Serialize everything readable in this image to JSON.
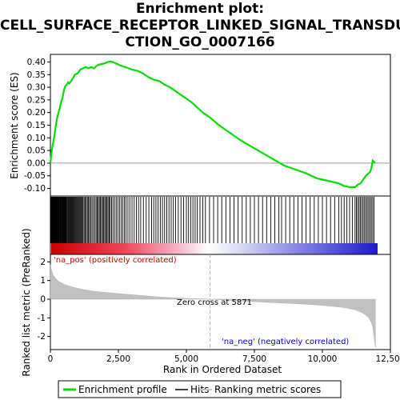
{
  "title_lines": [
    "Enrichment plot:",
    "CELL_SURFACE_RECEPTOR_LINKED_SIGNAL_TRANSDU",
    "CTION_GO_0007166"
  ],
  "chart_data": {
    "type": "line",
    "title": "Enrichment plot: CELL_SURFACE_RECEPTOR_LINKED_SIGNAL_TRANSDUCTION_GO_0007166",
    "xlabel": "Rank in Ordered Dataset",
    "xlim": [
      0,
      12500
    ],
    "x_ticks": [
      0,
      2500,
      5000,
      7500,
      10000,
      12500
    ],
    "x_tick_labels": [
      "0",
      "2,500",
      "5,000",
      "7,500",
      "10,000",
      "12,500"
    ],
    "es_panel": {
      "ylabel": "Enrichment score (ES)",
      "ylim": [
        -0.13,
        0.43
      ],
      "y_ticks": [
        -0.1,
        -0.05,
        0.0,
        0.05,
        0.1,
        0.15,
        0.2,
        0.25,
        0.3,
        0.35,
        0.4
      ],
      "y_tick_labels": [
        "-0.10",
        "-0.05",
        "0.00",
        "0.05",
        "0.10",
        "0.15",
        "0.20",
        "0.25",
        "0.30",
        "0.35",
        "0.40"
      ],
      "series_name": "Enrichment profile",
      "color": "#00dd00",
      "x": [
        0,
        50,
        100,
        150,
        200,
        250,
        300,
        350,
        400,
        450,
        500,
        550,
        600,
        650,
        700,
        800,
        900,
        1000,
        1100,
        1200,
        1300,
        1400,
        1500,
        1600,
        1700,
        1800,
        1900,
        2000,
        2100,
        2200,
        2300,
        2400,
        2600,
        2800,
        3000,
        3200,
        3400,
        3600,
        3800,
        4000,
        4200,
        4400,
        4600,
        4800,
        5000,
        5200,
        5400,
        5600,
        5871,
        6200,
        6600,
        7000,
        7400,
        7800,
        8200,
        8600,
        9000,
        9400,
        9800,
        10200,
        10600,
        10800,
        11000,
        11200,
        11300,
        11400,
        11500,
        11600,
        11700,
        11750,
        11800,
        11850,
        11950
      ],
      "y": [
        0.0,
        0.05,
        0.08,
        0.11,
        0.15,
        0.18,
        0.2,
        0.22,
        0.245,
        0.26,
        0.29,
        0.305,
        0.31,
        0.32,
        0.315,
        0.33,
        0.35,
        0.355,
        0.37,
        0.375,
        0.38,
        0.375,
        0.38,
        0.375,
        0.385,
        0.39,
        0.392,
        0.395,
        0.4,
        0.402,
        0.4,
        0.395,
        0.385,
        0.378,
        0.37,
        0.365,
        0.355,
        0.34,
        0.33,
        0.325,
        0.31,
        0.3,
        0.285,
        0.27,
        0.255,
        0.24,
        0.22,
        0.2,
        0.18,
        0.15,
        0.12,
        0.09,
        0.065,
        0.04,
        0.015,
        -0.01,
        -0.025,
        -0.04,
        -0.06,
        -0.07,
        -0.08,
        -0.09,
        -0.095,
        -0.095,
        -0.085,
        -0.08,
        -0.065,
        -0.05,
        -0.04,
        -0.035,
        -0.02,
        0.01,
        0.0
      ]
    },
    "hits_panel": {
      "series_name": "Hits",
      "hit_ranks": [
        5,
        20,
        35,
        50,
        65,
        80,
        95,
        110,
        125,
        140,
        155,
        170,
        185,
        200,
        215,
        230,
        245,
        260,
        280,
        300,
        320,
        340,
        360,
        380,
        400,
        420,
        440,
        460,
        480,
        500,
        520,
        540,
        560,
        580,
        600,
        630,
        660,
        690,
        720,
        750,
        780,
        810,
        840,
        870,
        900,
        930,
        960,
        990,
        1020,
        1050,
        1080,
        1110,
        1140,
        1170,
        1200,
        1240,
        1280,
        1320,
        1360,
        1400,
        1440,
        1480,
        1530,
        1580,
        1630,
        1680,
        1720,
        1760,
        1800,
        1840,
        1880,
        1920,
        1960,
        2000,
        2040,
        2080,
        2120,
        2160,
        2200,
        2250,
        2300,
        2360,
        2420,
        2480,
        2540,
        2600,
        2660,
        2720,
        2780,
        2850,
        2920,
        3000,
        3080,
        3160,
        3240,
        3320,
        3420,
        3520,
        3620,
        3720,
        3800,
        3880,
        3960,
        4040,
        4120,
        4200,
        4280,
        4360,
        4440,
        4520,
        4600,
        4700,
        4800,
        4900,
        5000,
        5080,
        5160,
        5240,
        5320,
        5400,
        5500,
        5600,
        5700,
        5850,
        6000,
        6150,
        6300,
        6450,
        6600,
        6750,
        6900,
        7050,
        7200,
        7350,
        7500,
        7650,
        7800,
        7950,
        8100,
        8250,
        8400,
        8500,
        8650,
        8800,
        8950,
        9100,
        9250,
        9400,
        9550,
        9700,
        9850,
        10000,
        10150,
        10300,
        10450,
        10600,
        10700,
        10800,
        10900,
        11000,
        11100,
        11200,
        11250,
        11300,
        11350,
        11400,
        11450,
        11500,
        11550,
        11600,
        11650,
        11700,
        11750,
        11800,
        11850,
        11900
      ]
    },
    "metric_panel": {
      "ylabel": "Ranked list metric (PreRanked)",
      "ylim": [
        -2.7,
        2.4
      ],
      "y_ticks": [
        -2,
        -1,
        0,
        1,
        2
      ],
      "y_tick_labels": [
        "-2",
        "-1",
        "0",
        "1",
        "2"
      ],
      "series_name": "Ranking metric scores",
      "color": "#c0c0c0",
      "x": [
        0,
        50,
        100,
        200,
        300,
        500,
        800,
        1200,
        1600,
        2000,
        2500,
        3000,
        3500,
        4000,
        4500,
        5000,
        5500,
        5871,
        6500,
        7000,
        7500,
        8000,
        8500,
        9000,
        9500,
        10000,
        10500,
        10800,
        11000,
        11200,
        11400,
        11600,
        11700,
        11800,
        11850,
        11900,
        11950
      ],
      "y": [
        1.85,
        1.5,
        1.3,
        1.1,
        0.95,
        0.8,
        0.65,
        0.52,
        0.43,
        0.37,
        0.3,
        0.24,
        0.18,
        0.12,
        0.08,
        0.04,
        0.02,
        0.0,
        -0.05,
        -0.1,
        -0.13,
        -0.17,
        -0.2,
        -0.24,
        -0.28,
        -0.33,
        -0.4,
        -0.45,
        -0.5,
        -0.57,
        -0.68,
        -0.85,
        -1.0,
        -1.25,
        -1.5,
        -2.0,
        -2.6
      ]
    },
    "zero_cross_rank": 5871,
    "annotations": {
      "pos_label": "'na_pos' (positively correlated)",
      "neg_label": "'na_neg' (negatively correlated)",
      "zero_cross_label": "Zero cross at 5871"
    },
    "legend": {
      "placement": "bottom",
      "entries": [
        "Enrichment profile",
        "Hits",
        "Ranking metric scores"
      ]
    },
    "colors": {
      "es_line": "#00dd00",
      "hits": "#000000",
      "metric_fill": "#c0c0c0",
      "pos_label": "#cc0000",
      "neg_label": "#0000cc",
      "gradient_pos": "#cc0000",
      "gradient_neg": "#2222dd"
    }
  }
}
